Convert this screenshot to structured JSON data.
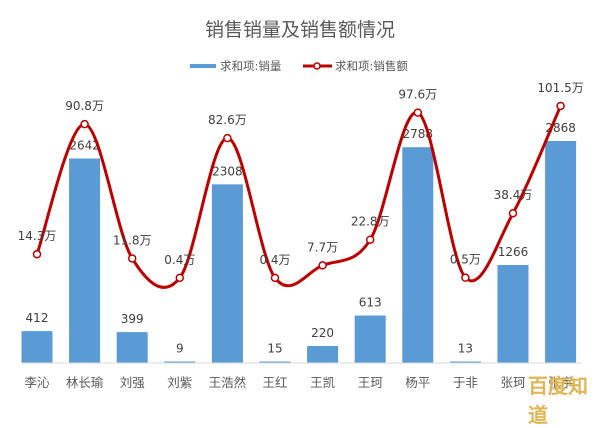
{
  "chart_data": {
    "type": "bar+line",
    "title": "销售销量及销售额情况",
    "categories": [
      "李沁",
      "林长瑜",
      "刘强",
      "刘紫",
      "王浩然",
      "王红",
      "王凯",
      "王珂",
      "杨平",
      "于非",
      "张珂",
      "张宇"
    ],
    "series": [
      {
        "name": "求和项:销量",
        "type": "bar",
        "color": "#5b9bd5",
        "values": [
          412,
          2642,
          399,
          9,
          2308,
          15,
          220,
          613,
          2788,
          13,
          1266,
          2868
        ]
      },
      {
        "name": "求和项:销售额",
        "type": "line",
        "color": "#c00000",
        "unit": "万",
        "values": [
          14.3,
          90.8,
          11.8,
          0.4,
          82.6,
          0.4,
          7.7,
          22.8,
          97.6,
          0.5,
          38.4,
          101.5
        ],
        "labels": [
          "14.3万",
          "90.8万",
          "11.8万",
          "0.4万",
          "82.6万",
          "0.4万",
          "7.7万",
          "22.8万",
          "97.6万",
          "0.5万",
          "38.4万",
          "101.5万"
        ]
      }
    ],
    "xlabel": "",
    "ylabel": "",
    "grid": false,
    "legend_position": "top"
  },
  "legend": {
    "bar_label": "求和项:销量",
    "line_label": "求和项:销售额"
  },
  "colors": {
    "bar": "#5b9bd5",
    "line": "#c00000",
    "axis": "#d9d9d9",
    "text": "#595959"
  },
  "watermark": "百度知道"
}
